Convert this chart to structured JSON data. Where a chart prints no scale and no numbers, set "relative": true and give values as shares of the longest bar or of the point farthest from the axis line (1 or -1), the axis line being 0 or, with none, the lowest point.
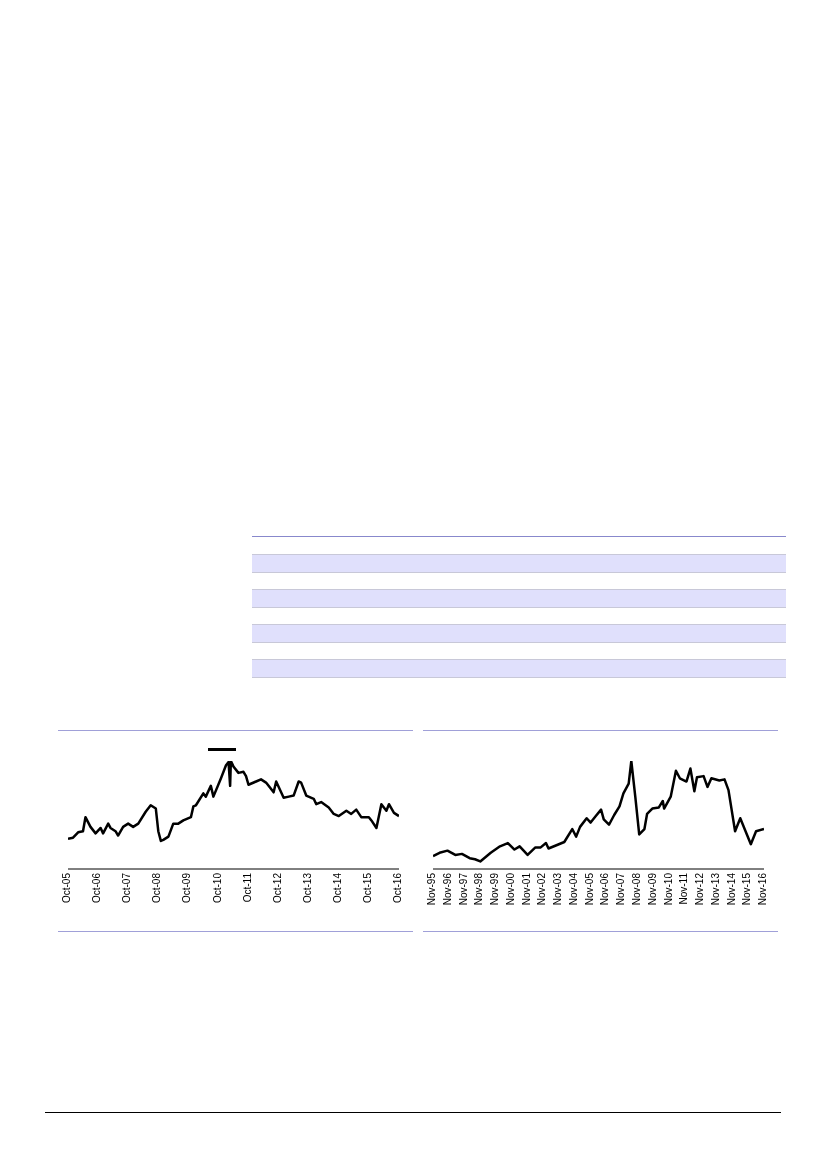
{
  "chart_data": [
    {
      "type": "line",
      "relative": true,
      "legend": false,
      "grid": false,
      "marker": "none",
      "line_style": "solid",
      "xlim": [
        "2005-10",
        "2016-10"
      ],
      "xticks": [
        {
          "value": "2005-10",
          "label": "Oct-05"
        },
        {
          "value": "2006-10",
          "label": "Oct-06"
        },
        {
          "value": "2007-10",
          "label": "Oct-07"
        },
        {
          "value": "2008-10",
          "label": "Oct-08"
        },
        {
          "value": "2009-10",
          "label": "Oct-09"
        },
        {
          "value": "2010-10",
          "label": "Oct-10"
        },
        {
          "value": "2011-10",
          "label": "Oct-11"
        },
        {
          "value": "2012-10",
          "label": "Oct-12"
        },
        {
          "value": "2013-10",
          "label": "Oct-13"
        },
        {
          "value": "2014-10",
          "label": "Oct-14"
        },
        {
          "value": "2015-10",
          "label": "Oct-15"
        },
        {
          "value": "2016-10",
          "label": "Oct-16"
        }
      ],
      "x": [
        "2005-10",
        "2005-12",
        "2006-02",
        "2006-04",
        "2006-05",
        "2006-07",
        "2006-09",
        "2006-11",
        "2006-12",
        "2007-02",
        "2007-03",
        "2007-05",
        "2007-06",
        "2007-08",
        "2007-10",
        "2007-12",
        "2008-02",
        "2008-05",
        "2008-07",
        "2008-09",
        "2008-10",
        "2008-11",
        "2008-12",
        "2009-02",
        "2009-04",
        "2009-06",
        "2009-08",
        "2009-11",
        "2009-12",
        "2010-01",
        "2010-04",
        "2010-05",
        "2010-07",
        "2010-08",
        "2010-11",
        "2011-01",
        "2011-02",
        "2011-02-20",
        "2011-03",
        "2011-04",
        "2011-06",
        "2011-08",
        "2011-09",
        "2011-10",
        "2012-01",
        "2012-03",
        "2012-05",
        "2012-06",
        "2012-08",
        "2012-09",
        "2012-12",
        "2013-02",
        "2013-04",
        "2013-06",
        "2013-07",
        "2013-09",
        "2013-12",
        "2014-01",
        "2014-03",
        "2014-06",
        "2014-08",
        "2014-10",
        "2015-01",
        "2015-03",
        "2015-05",
        "2015-07",
        "2015-10",
        "2015-11",
        "2016-01",
        "2016-03",
        "2016-05",
        "2016-06",
        "2016-08",
        "2016-10"
      ],
      "series": [
        {
          "color": "#000000",
          "values": [
            0.28,
            0.29,
            0.34,
            0.35,
            0.48,
            0.39,
            0.33,
            0.38,
            0.33,
            0.42,
            0.38,
            0.35,
            0.31,
            0.39,
            0.42,
            0.39,
            0.42,
            0.53,
            0.59,
            0.56,
            0.35,
            0.26,
            0.27,
            0.3,
            0.42,
            0.42,
            0.45,
            0.48,
            0.58,
            0.59,
            0.7,
            0.67,
            0.77,
            0.67,
            0.84,
            0.96,
            0.99,
            0.77,
            1.0,
            0.95,
            0.89,
            0.9,
            0.86,
            0.78,
            0.81,
            0.83,
            0.8,
            0.77,
            0.71,
            0.81,
            0.66,
            0.67,
            0.68,
            0.81,
            0.8,
            0.68,
            0.65,
            0.6,
            0.62,
            0.57,
            0.51,
            0.49,
            0.54,
            0.51,
            0.55,
            0.48,
            0.48,
            0.45,
            0.38,
            0.6,
            0.54,
            0.6,
            0.52,
            0.49
          ]
        }
      ]
    },
    {
      "type": "line",
      "relative": true,
      "legend": false,
      "grid": false,
      "marker": "none",
      "line_style": "solid",
      "xlim": [
        "1995-11",
        "2016-11"
      ],
      "xticks": [
        {
          "value": "1995-11",
          "label": "Nov-95"
        },
        {
          "value": "1996-11",
          "label": "Nov-96"
        },
        {
          "value": "1997-11",
          "label": "Nov-97"
        },
        {
          "value": "1998-11",
          "label": "Nov-98"
        },
        {
          "value": "1999-11",
          "label": "Nov-99"
        },
        {
          "value": "2000-11",
          "label": "Nov-00"
        },
        {
          "value": "2001-11",
          "label": "Nov-01"
        },
        {
          "value": "2002-11",
          "label": "Nov-02"
        },
        {
          "value": "2003-11",
          "label": "Nov-03"
        },
        {
          "value": "2004-11",
          "label": "Nov-04"
        },
        {
          "value": "2005-11",
          "label": "Nov-05"
        },
        {
          "value": "2006-11",
          "label": "Nov-06"
        },
        {
          "value": "2007-11",
          "label": "Nov-07"
        },
        {
          "value": "2008-11",
          "label": "Nov-08"
        },
        {
          "value": "2009-11",
          "label": "Nov-09"
        },
        {
          "value": "2010-11",
          "label": "Nov-10"
        },
        {
          "value": "2011-11",
          "label": "Nov-11"
        },
        {
          "value": "2012-11",
          "label": "Nov-12"
        },
        {
          "value": "2013-11",
          "label": "Nov-13"
        },
        {
          "value": "2014-11",
          "label": "Nov-14"
        },
        {
          "value": "2015-11",
          "label": "Nov-15"
        },
        {
          "value": "2016-11",
          "label": "Nov-16"
        }
      ],
      "x": [
        "1995-11",
        "1996-04",
        "1996-10",
        "1997-04",
        "1997-09",
        "1998-03",
        "1998-07",
        "1998-11",
        "1999-07",
        "2000-02",
        "2000-08",
        "2001-01",
        "2001-05",
        "2001-11",
        "2002-05",
        "2002-09",
        "2003-01",
        "2003-03",
        "2003-09",
        "2004-03",
        "2004-09",
        "2004-12",
        "2005-03",
        "2005-08",
        "2005-11",
        "2006-03",
        "2006-07",
        "2006-09",
        "2007-01",
        "2007-05",
        "2007-09",
        "2007-12",
        "2008-04",
        "2008-06",
        "2008-09",
        "2008-12",
        "2009-04",
        "2009-06",
        "2009-10",
        "2010-03",
        "2010-06",
        "2010-07",
        "2010-12",
        "2011-04",
        "2011-07",
        "2011-12",
        "2012-03",
        "2012-06",
        "2012-08",
        "2013-01",
        "2013-04",
        "2013-07",
        "2014-01",
        "2014-05",
        "2014-08",
        "2015-01",
        "2015-05",
        "2015-10",
        "2016-01",
        "2016-05",
        "2016-11"
      ],
      "series": [
        {
          "color": "#000000",
          "values": [
            0.12,
            0.15,
            0.17,
            0.13,
            0.14,
            0.1,
            0.09,
            0.07,
            0.15,
            0.21,
            0.24,
            0.18,
            0.21,
            0.13,
            0.2,
            0.2,
            0.24,
            0.19,
            0.22,
            0.25,
            0.37,
            0.3,
            0.39,
            0.47,
            0.43,
            0.49,
            0.55,
            0.46,
            0.41,
            0.5,
            0.58,
            0.7,
            0.79,
            1.0,
            0.67,
            0.32,
            0.37,
            0.51,
            0.56,
            0.57,
            0.63,
            0.56,
            0.67,
            0.91,
            0.84,
            0.81,
            0.93,
            0.72,
            0.85,
            0.86,
            0.76,
            0.84,
            0.82,
            0.83,
            0.73,
            0.35,
            0.47,
            0.32,
            0.23,
            0.35,
            0.37
          ]
        }
      ]
    }
  ]
}
